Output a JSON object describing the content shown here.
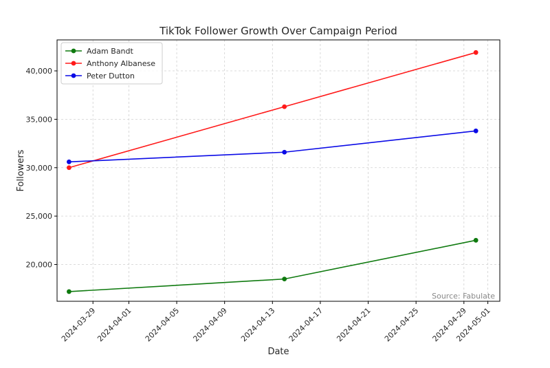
{
  "chart_data": {
    "type": "line",
    "title": "TikTok Follower Growth Over Campaign Period",
    "xlabel": "Date",
    "ylabel": "Followers",
    "source": "Source: Fabulate",
    "x": [
      "2024-03-27",
      "2024-04-14",
      "2024-04-30"
    ],
    "xlim": [
      "2024-03-26",
      "2024-05-02"
    ],
    "xticks": [
      "2024-03-29",
      "2024-04-01",
      "2024-04-05",
      "2024-04-09",
      "2024-04-13",
      "2024-04-17",
      "2024-04-21",
      "2024-04-25",
      "2024-04-29",
      "2024-05-01"
    ],
    "ylim": [
      16200,
      43200
    ],
    "yticks": [
      20000,
      25000,
      30000,
      35000,
      40000
    ],
    "ytick_labels": [
      "20,000",
      "25,000",
      "30,000",
      "35,000",
      "40,000"
    ],
    "grid": true,
    "legend_position": "top-left",
    "series": [
      {
        "name": "Adam Bandt",
        "color": "#0f7a0f",
        "values": [
          17200,
          18500,
          22500
        ]
      },
      {
        "name": "Anthony Albanese",
        "color": "#ff1a1a",
        "values": [
          30000,
          36300,
          41900
        ]
      },
      {
        "name": "Peter Dutton",
        "color": "#0a0ae6",
        "values": [
          30600,
          31600,
          33800
        ]
      }
    ]
  }
}
